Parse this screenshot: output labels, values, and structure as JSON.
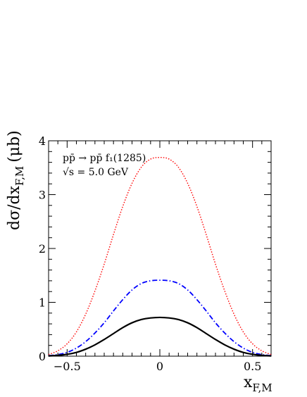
{
  "chart_data": {
    "type": "line",
    "title": "",
    "xlabel": "x_F,M",
    "ylabel": "dσ/dx_F,M (μb)",
    "xlabel_parts": {
      "main": "x",
      "sub": "F,M"
    },
    "ylabel_parts": {
      "main": "dσ/dx",
      "sub": "F,M",
      "unit": "(μb)"
    },
    "xlim": [
      -0.6,
      0.6
    ],
    "ylim": [
      0,
      4
    ],
    "x_ticks": [
      -0.5,
      0,
      0.5
    ],
    "x_tick_labels": [
      "−0.5",
      "0",
      "0.5"
    ],
    "y_ticks": [
      0,
      1,
      2,
      3,
      4
    ],
    "y_tick_labels": [
      "0",
      "1",
      "2",
      "3",
      "4"
    ],
    "grid": false,
    "annotations": {
      "reaction": "pp̄ → pp̄ f₁(1285)",
      "energy": "√s = 5.0 GeV"
    },
    "series": [
      {
        "style": "dotted",
        "color": "#ff0000",
        "x": [
          -0.6,
          -0.55,
          -0.5,
          -0.45,
          -0.4,
          -0.35,
          -0.3,
          -0.25,
          -0.2,
          -0.15,
          -0.1,
          -0.05,
          0,
          0.05,
          0.1,
          0.15,
          0.2,
          0.25,
          0.3,
          0.35,
          0.4,
          0.45,
          0.5,
          0.55,
          0.6
        ],
        "y": [
          0.03,
          0.1,
          0.23,
          0.45,
          0.78,
          1.21,
          1.71,
          2.26,
          2.78,
          3.21,
          3.51,
          3.66,
          3.69,
          3.66,
          3.51,
          3.21,
          2.78,
          2.26,
          1.71,
          1.21,
          0.78,
          0.45,
          0.23,
          0.1,
          0.03
        ]
      },
      {
        "style": "dashdot",
        "color": "#0000ff",
        "x": [
          -0.6,
          -0.55,
          -0.5,
          -0.45,
          -0.4,
          -0.35,
          -0.3,
          -0.25,
          -0.2,
          -0.15,
          -0.1,
          -0.05,
          0,
          0.05,
          0.1,
          0.15,
          0.2,
          0.25,
          0.3,
          0.35,
          0.4,
          0.45,
          0.5,
          0.55,
          0.6
        ],
        "y": [
          0.01,
          0.03,
          0.07,
          0.15,
          0.27,
          0.43,
          0.62,
          0.84,
          1.05,
          1.23,
          1.35,
          1.4,
          1.41,
          1.4,
          1.35,
          1.23,
          1.05,
          0.84,
          0.62,
          0.43,
          0.27,
          0.15,
          0.07,
          0.03,
          0.01
        ]
      },
      {
        "style": "solid",
        "color": "#000000",
        "x": [
          -0.6,
          -0.55,
          -0.5,
          -0.45,
          -0.4,
          -0.35,
          -0.3,
          -0.25,
          -0.2,
          -0.15,
          -0.1,
          -0.05,
          0,
          0.05,
          0.1,
          0.15,
          0.2,
          0.25,
          0.3,
          0.35,
          0.4,
          0.45,
          0.5,
          0.55,
          0.6
        ],
        "y": [
          0.005,
          0.015,
          0.035,
          0.07,
          0.13,
          0.21,
          0.31,
          0.42,
          0.53,
          0.62,
          0.68,
          0.71,
          0.72,
          0.71,
          0.68,
          0.62,
          0.53,
          0.42,
          0.31,
          0.21,
          0.13,
          0.07,
          0.035,
          0.015,
          0.005
        ]
      }
    ]
  }
}
